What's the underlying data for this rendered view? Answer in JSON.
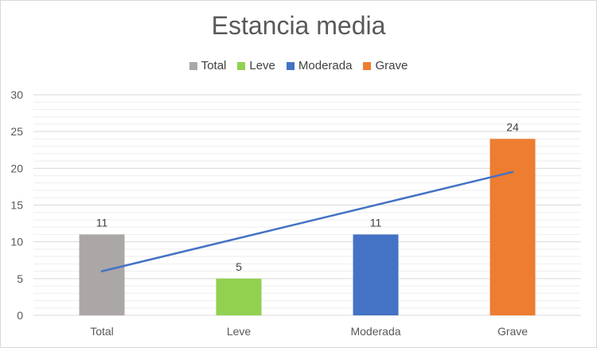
{
  "chart_data": {
    "type": "bar",
    "title": "Estancia media",
    "categories": [
      "Total",
      "Leve",
      "Moderada",
      "Grave"
    ],
    "values": [
      11,
      5,
      11,
      24
    ],
    "bar_colors": [
      "#ABA7A6",
      "#92D050",
      "#4472C4",
      "#ED7D31"
    ],
    "data_labels": [
      "11",
      "5",
      "11",
      "24"
    ],
    "trendline": {
      "type": "linear",
      "color": "#4472C4",
      "start": 6,
      "end": 19.5
    },
    "ylim": [
      0,
      30
    ],
    "y_ticks": [
      0,
      5,
      10,
      15,
      20,
      25,
      30
    ],
    "legend": {
      "position": "top",
      "entries": [
        {
          "label": "Total",
          "color": "#ABA7A6"
        },
        {
          "label": "Leve",
          "color": "#92D050"
        },
        {
          "label": "Moderada",
          "color": "#4472C4"
        },
        {
          "label": "Grave",
          "color": "#ED7D31"
        }
      ]
    },
    "grid": true,
    "xlabel": "",
    "ylabel": ""
  }
}
